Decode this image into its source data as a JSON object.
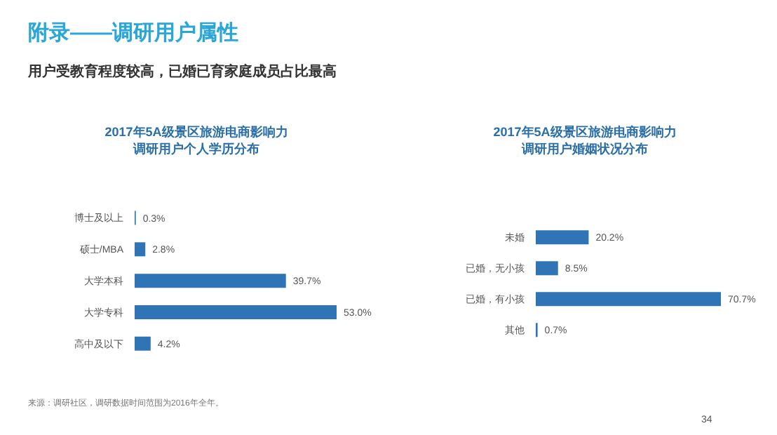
{
  "chart_data": [
    {
      "type": "bar",
      "orientation": "horizontal",
      "title": "2017年5A级景区旅游电商影响力调研用户个人学历分布",
      "categories": [
        "博士及以上",
        "硕士/MBA",
        "大学本科",
        "大学专科",
        "高中及以下"
      ],
      "values": [
        0.3,
        2.8,
        39.7,
        53.0,
        4.2
      ],
      "value_labels": [
        "0.3%",
        "2.8%",
        "39.7%",
        "53.0%",
        "4.2%"
      ],
      "color": "#2f74b5",
      "legend": false,
      "grid": false,
      "annotations": [
        "附录——调研用户属性",
        "用户受教育程度较高，已婚已育家庭成员占比最高"
      ]
    },
    {
      "type": "bar",
      "orientation": "horizontal",
      "title": "2017年5A级景区旅游电商影响力调研用户婚姻状况分布",
      "categories": [
        "未婚",
        "已婚，无小孩",
        "已婚，有小孩",
        "其他"
      ],
      "values": [
        20.2,
        8.5,
        70.7,
        0.7
      ],
      "value_labels": [
        "20.2%",
        "8.5%",
        "70.7%",
        "0.7%"
      ],
      "color": "#2f74b5",
      "legend": false,
      "grid": false,
      "annotations": [
        "来源：调研社区，调研数据时间范围为2016年全年。",
        "34"
      ]
    }
  ]
}
